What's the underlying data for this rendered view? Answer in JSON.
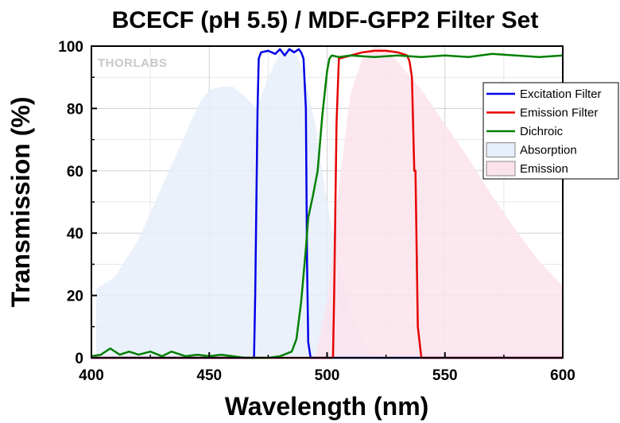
{
  "watermark": "THORLABS",
  "chart_data": {
    "type": "line",
    "title": "BCECF (pH 5.5) / MDF-GFP2 Filter Set",
    "xlabel": "Wavelength (nm)",
    "ylabel": "Transmission (%)",
    "xlim": [
      400,
      600
    ],
    "ylim": [
      0,
      100
    ],
    "xticks": [
      "400",
      "450",
      "500",
      "550",
      "600"
    ],
    "yticks": [
      "0",
      "20",
      "40",
      "60",
      "80",
      "100"
    ],
    "grid": true,
    "legend_position": "top-right",
    "series": [
      {
        "name": "Absorption",
        "kind": "area",
        "color": "#e6eefa",
        "x": [
          402,
          410,
          420,
          430,
          440,
          446,
          450,
          455,
          460,
          465,
          470,
          475,
          480,
          485,
          490,
          495,
          500,
          505,
          510,
          515,
          520
        ],
        "y": [
          22,
          26,
          38,
          55,
          72,
          82,
          86,
          87,
          87,
          84,
          80,
          90,
          98,
          100,
          92,
          75,
          50,
          30,
          15,
          6,
          0
        ]
      },
      {
        "name": "Emission",
        "kind": "area",
        "color": "#fbe3ec",
        "x": [
          495,
          500,
          505,
          510,
          515,
          520,
          525,
          530,
          540,
          550,
          560,
          570,
          580,
          590,
          600
        ],
        "y": [
          0,
          18,
          55,
          85,
          96,
          100,
          99,
          95,
          86,
          75,
          64,
          52,
          41,
          31,
          23
        ]
      },
      {
        "name": "Excitation Filter",
        "kind": "line",
        "color": "#0000e6",
        "x": [
          400,
          469,
          469.5,
          470.5,
          471,
          472,
          475,
          478,
          480,
          482,
          484,
          486,
          488,
          489,
          490,
          491,
          491.5,
          492,
          493,
          600
        ],
        "y": [
          0,
          0,
          20,
          80,
          96,
          98,
          98.5,
          97.5,
          99,
          97,
          99,
          98,
          99,
          98,
          96,
          80,
          30,
          5,
          0,
          0
        ]
      },
      {
        "name": "Emission Filter",
        "kind": "line",
        "color": "#e60000",
        "x": [
          400,
          502.5,
          503,
          504,
          505,
          510,
          515,
          520,
          525,
          530,
          534,
          535,
          536,
          537,
          537.5,
          538.5,
          540,
          600
        ],
        "y": [
          0,
          0,
          20,
          75,
          96,
          97,
          98,
          98.5,
          98.5,
          98,
          97,
          95,
          90,
          60,
          60,
          10,
          0,
          0
        ]
      },
      {
        "name": "Dichroic",
        "kind": "line",
        "color": "#008000",
        "x": [
          400,
          404,
          408,
          412,
          416,
          420,
          425,
          430,
          434,
          440,
          445,
          450,
          455,
          460,
          465,
          470,
          475,
          480,
          485,
          487,
          489,
          491,
          492,
          494,
          496,
          498,
          500,
          501,
          502,
          505,
          510,
          520,
          530,
          540,
          550,
          560,
          570,
          580,
          590,
          600
        ],
        "y": [
          0.5,
          1,
          3,
          1,
          2,
          1,
          2,
          0.5,
          2,
          0.5,
          1,
          0.5,
          1,
          0.5,
          0,
          0,
          0,
          0.5,
          2,
          6,
          18,
          35,
          45,
          52,
          60,
          78,
          92,
          96,
          97,
          96.5,
          97,
          96.5,
          97,
          96.5,
          97,
          96.5,
          97.5,
          97,
          96.5,
          97
        ]
      }
    ]
  }
}
